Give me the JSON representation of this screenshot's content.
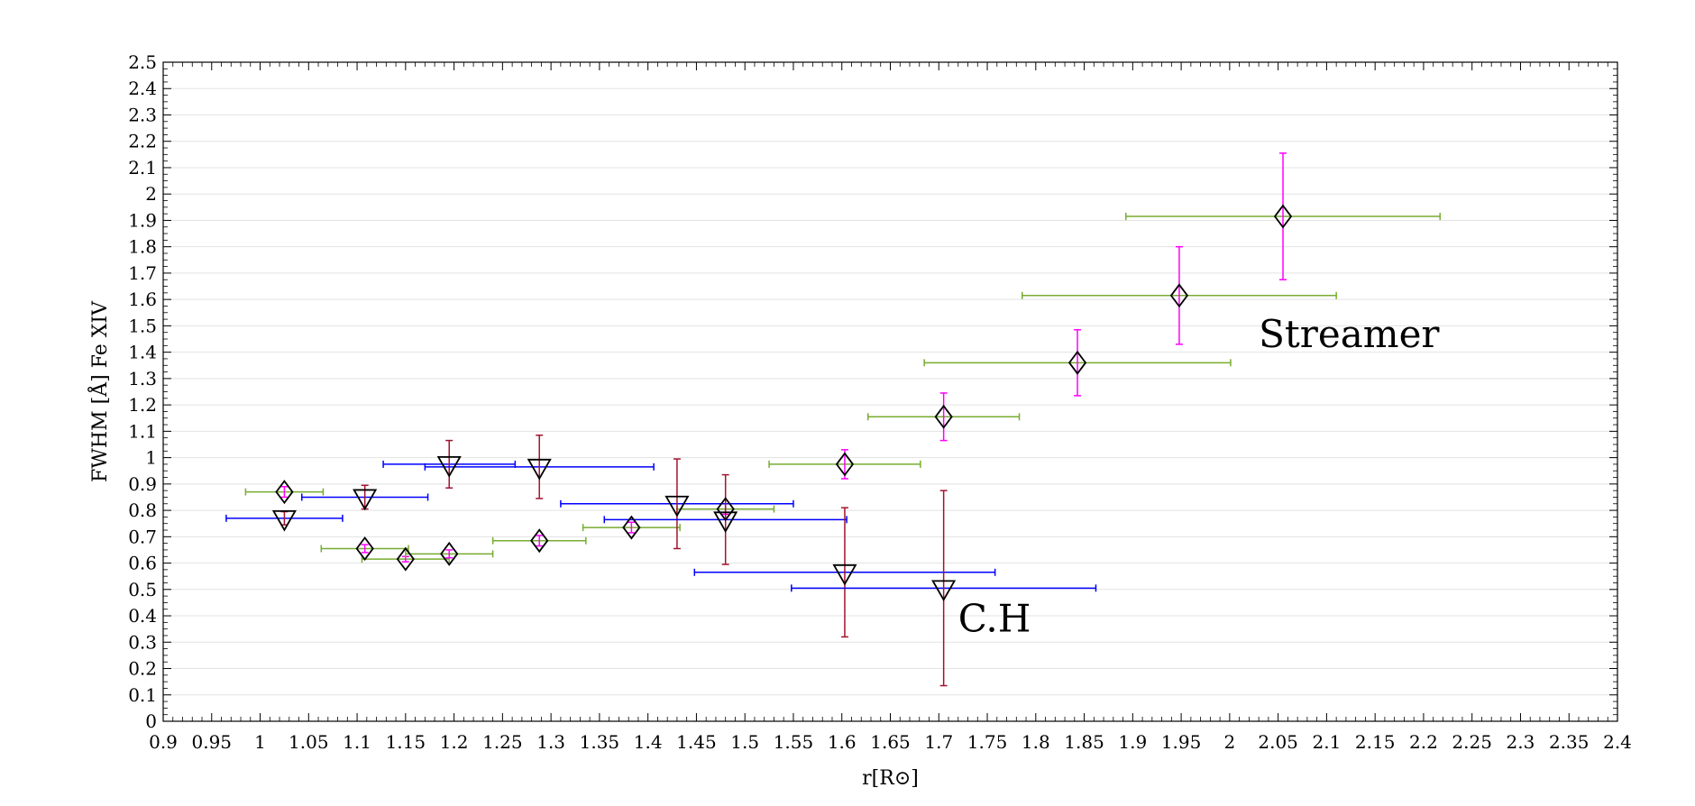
{
  "chart_data": {
    "type": "scatter",
    "xlabel": "r[R⊙]",
    "ylabel": "FWHM [Å] Fe XIV",
    "xlim": [
      0.9,
      2.4
    ],
    "ylim": [
      0,
      2.5
    ],
    "x_ticks": [
      "0.9",
      "0.95",
      "1",
      "1.05",
      "1.1",
      "1.15",
      "1.2",
      "1.25",
      "1.3",
      "1.35",
      "1.4",
      "1.45",
      "1.5",
      "1.55",
      "1.6",
      "1.65",
      "1.7",
      "1.75",
      "1.8",
      "1.85",
      "1.9",
      "1.95",
      "2",
      "2.05",
      "2.1",
      "2.15",
      "2.2",
      "2.25",
      "2.3",
      "2.35",
      "2.4"
    ],
    "y_ticks": [
      "0",
      "0.1",
      "0.2",
      "0.3",
      "0.4",
      "0.5",
      "0.6",
      "0.7",
      "0.8",
      "0.9",
      "1",
      "1.1",
      "1.2",
      "1.3",
      "1.4",
      "1.5",
      "1.6",
      "1.7",
      "1.8",
      "1.9",
      "2",
      "2.1",
      "2.2",
      "2.3",
      "2.4",
      "2.5"
    ],
    "grid": "horizontal",
    "annotations": [
      {
        "text": "Streamer",
        "x": 2.03,
        "y": 1.42
      },
      {
        "text": "C.H",
        "x": 1.72,
        "y": 0.34
      }
    ],
    "series": [
      {
        "marker": "diamond",
        "xerr_color": "#77ac30",
        "yerr_color": "#ff00ff",
        "points": [
          {
            "x": 1.025,
            "y": 0.87,
            "xerr": 0.04,
            "yerr": 0.02
          },
          {
            "x": 1.108,
            "y": 0.655,
            "xerr": 0.045,
            "yerr": 0.015
          },
          {
            "x": 1.15,
            "y": 0.615,
            "xerr": 0.045,
            "yerr": 0.01
          },
          {
            "x": 1.195,
            "y": 0.635,
            "xerr": 0.045,
            "yerr": 0.015
          },
          {
            "x": 1.288,
            "y": 0.685,
            "xerr": 0.048,
            "yerr": 0.02
          },
          {
            "x": 1.383,
            "y": 0.735,
            "xerr": 0.05,
            "yerr": 0.02
          },
          {
            "x": 1.48,
            "y": 0.805,
            "xerr": 0.05,
            "yerr": 0.02
          },
          {
            "x": 1.603,
            "y": 0.975,
            "xerr": 0.078,
            "yerr": 0.055
          },
          {
            "x": 1.705,
            "y": 1.155,
            "xerr": 0.078,
            "yerr": 0.09
          },
          {
            "x": 1.843,
            "y": 1.36,
            "xerr": 0.158,
            "yerr": 0.125
          },
          {
            "x": 1.948,
            "y": 1.615,
            "xerr": 0.162,
            "yerr": 0.185
          },
          {
            "x": 2.055,
            "y": 1.915,
            "xerr": 0.162,
            "yerr": 0.24
          }
        ]
      },
      {
        "marker": "triangle-down",
        "xerr_color": "#0000ff",
        "yerr_color": "#a2142f",
        "points": [
          {
            "x": 1.025,
            "y": 0.77,
            "xerr": 0.06,
            "yerr": 0.025
          },
          {
            "x": 1.108,
            "y": 0.85,
            "xerr": 0.065,
            "yerr": 0.045
          },
          {
            "x": 1.195,
            "y": 0.975,
            "xerr": 0.068,
            "yerr": 0.09
          },
          {
            "x": 1.288,
            "y": 0.965,
            "xerr": 0.118,
            "yerr": 0.12
          },
          {
            "x": 1.43,
            "y": 0.825,
            "xerr": 0.12,
            "yerr": 0.17
          },
          {
            "x": 1.48,
            "y": 0.765,
            "xerr": 0.125,
            "yerr": 0.17
          },
          {
            "x": 1.603,
            "y": 0.565,
            "xerr": 0.155,
            "yerr": 0.245
          },
          {
            "x": 1.705,
            "y": 0.505,
            "xerr": 0.157,
            "yerr": 0.37
          }
        ]
      }
    ]
  }
}
